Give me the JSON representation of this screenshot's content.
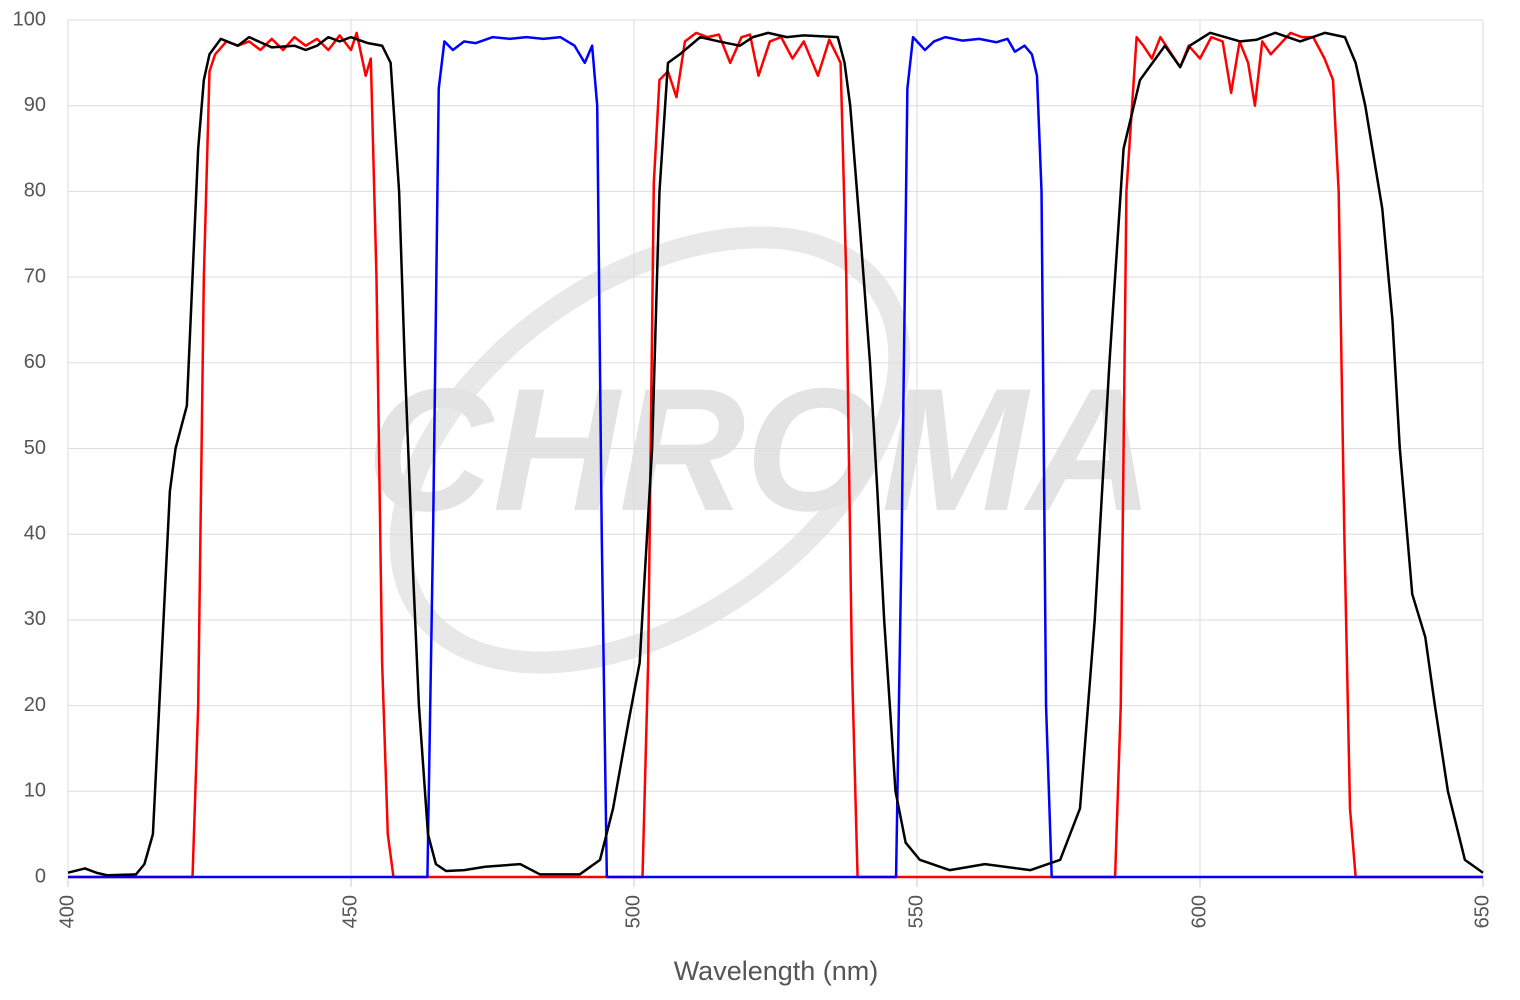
{
  "chart_data": {
    "type": "line",
    "watermark": "CHROMA",
    "x_label": "Wavelength (nm)",
    "xlim": [
      400,
      650
    ],
    "xticks": [
      400,
      450,
      500,
      550,
      600,
      650
    ],
    "ylim": [
      0,
      100
    ],
    "yticks": [
      0,
      10,
      20,
      30,
      40,
      50,
      60,
      70,
      80,
      90,
      100
    ],
    "grid": true,
    "series": [
      {
        "color": "#ff0000",
        "x": [
          400,
          422,
          423,
          424,
          425,
          426,
          428,
          430,
          432,
          434,
          436,
          438,
          440,
          442,
          444,
          446,
          448,
          450,
          451,
          452.6,
          453.5,
          454.5,
          455.5,
          456.5,
          457.5,
          501.5,
          502.5,
          503.5,
          504.5,
          506,
          507.5,
          509,
          511,
          513,
          515,
          517,
          519,
          520.5,
          522,
          524,
          526,
          528,
          530,
          532.5,
          534.5,
          536.5,
          537.5,
          538.5,
          539.5,
          585,
          586,
          587,
          588.8,
          590,
          591.5,
          593,
          595,
          596.5,
          598,
          600,
          602,
          604,
          605.5,
          607,
          608.5,
          609.7,
          611,
          612.5,
          614.6,
          616,
          618,
          620,
          622,
          623.5,
          624.5,
          625.5,
          626.5,
          627.5,
          650
        ],
        "values": [
          0,
          0,
          20,
          70,
          94,
          96,
          97.5,
          97,
          97.5,
          96.5,
          97.8,
          96.5,
          98,
          97,
          97.8,
          96.5,
          98.2,
          96.5,
          98.5,
          93.5,
          95.5,
          70,
          25,
          5,
          0,
          0,
          25,
          81,
          93,
          94,
          91,
          97.5,
          98.5,
          98,
          98.3,
          95,
          98,
          98.3,
          93.5,
          97.5,
          98,
          95.5,
          97.5,
          93.5,
          97.7,
          95,
          70,
          25,
          0,
          0,
          20,
          80,
          98,
          97,
          95.5,
          98,
          96,
          94.5,
          97,
          95.5,
          98,
          97.5,
          91.5,
          97.5,
          95,
          90,
          97.5,
          96,
          97.5,
          98.5,
          98,
          98,
          95.5,
          93,
          80,
          40,
          8,
          0,
          0
        ]
      },
      {
        "color": "#0000ff",
        "x": [
          400,
          463.5,
          464.5,
          465.5,
          466.5,
          468,
          470,
          472,
          475,
          478,
          481,
          484,
          487,
          489.5,
          491.3,
          492.6,
          493.5,
          494.3,
          495.2,
          546.3,
          547.3,
          548.3,
          549.3,
          551.4,
          553,
          555,
          558,
          561,
          564,
          566,
          567.3,
          569,
          570.3,
          571.2,
          572,
          572.8,
          573.8,
          650
        ],
        "values": [
          0,
          0,
          40,
          92,
          97.5,
          96.5,
          97.5,
          97.3,
          98,
          97.8,
          98,
          97.8,
          98,
          97,
          95,
          97,
          90,
          40,
          0,
          0,
          40,
          92,
          98,
          96.5,
          97.5,
          98,
          97.6,
          97.8,
          97.4,
          97.8,
          96.3,
          97,
          96,
          93.5,
          80,
          20,
          0,
          0
        ]
      },
      {
        "color": "#000000",
        "x": [
          400,
          403,
          405,
          407,
          412,
          413.5,
          415,
          416.5,
          418,
          419,
          421,
          422,
          423,
          424,
          425,
          427,
          430,
          432,
          436,
          440,
          442,
          444,
          446,
          448,
          450,
          453,
          455.5,
          457,
          458.5,
          459.5,
          461,
          462,
          463.6,
          465,
          466.8,
          470,
          473.7,
          479.9,
          483.4,
          490.4,
          494,
          496.3,
          499,
          501,
          503.2,
          504.5,
          506,
          508.1,
          511.7,
          515,
          518.7,
          521,
          523.7,
          527,
          530,
          536,
          537.2,
          538.2,
          540,
          541.7,
          543,
          544.2,
          546.2,
          548,
          550.5,
          555.8,
          562,
          570,
          575.3,
          578.8,
          581.4,
          584,
          586.5,
          589.4,
          593.8,
          596.5,
          598.2,
          601.8,
          607.1,
          610,
          613.3,
          617.7,
          622.1,
          625.6,
          627.5,
          629.2,
          632.2,
          634,
          635.3,
          637.5,
          639.8,
          641.5,
          643.8,
          646.8,
          650
        ],
        "values": [
          0.5,
          1,
          0.5,
          0.2,
          0.3,
          1.5,
          5,
          25,
          45,
          50,
          55,
          70,
          85,
          93,
          96,
          97.8,
          97,
          98,
          96.8,
          97,
          96.5,
          97,
          98,
          97.5,
          98,
          97.3,
          97,
          95,
          80,
          60,
          35,
          20,
          5,
          1.5,
          0.7,
          0.8,
          1.2,
          1.5,
          0.3,
          0.3,
          2,
          8,
          18,
          25,
          50,
          80,
          95,
          96,
          98,
          97.5,
          97,
          98,
          98.5,
          98,
          98.2,
          98,
          95,
          90,
          75,
          60,
          45,
          30,
          10,
          4,
          2,
          0.8,
          1.5,
          0.8,
          2,
          8,
          30,
          60,
          85,
          93,
          97,
          94.5,
          97,
          98.5,
          97.5,
          97.7,
          98.5,
          97.5,
          98.5,
          98,
          95,
          90,
          78,
          65,
          50,
          33,
          28,
          20,
          10,
          2,
          0.5
        ]
      }
    ]
  }
}
